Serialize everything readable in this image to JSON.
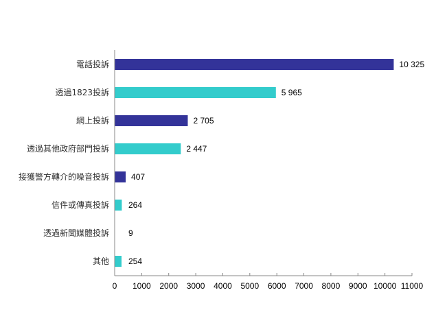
{
  "chart_data": {
    "type": "bar",
    "orientation": "horizontal",
    "categories": [
      "電話投訴",
      "透過1823投訴",
      "網上投訴",
      "透過其他政府部門投訴",
      "接獲警方轉介的噪音投訴",
      "信件或傳真投訴",
      "透過新聞媒體投訴",
      "其他"
    ],
    "values": [
      10325,
      5965,
      2705,
      2447,
      407,
      264,
      9,
      254
    ],
    "value_labels": [
      "10 325",
      "5 965",
      "2 705",
      "2 447",
      "407",
      "264",
      "9",
      "254"
    ],
    "xlim": [
      0,
      11000
    ],
    "xticks": [
      0,
      1000,
      2000,
      3000,
      4000,
      5000,
      6000,
      7000,
      8000,
      9000,
      10000,
      11000
    ],
    "grid": false,
    "colors": [
      "#333399",
      "#33cccc"
    ]
  }
}
